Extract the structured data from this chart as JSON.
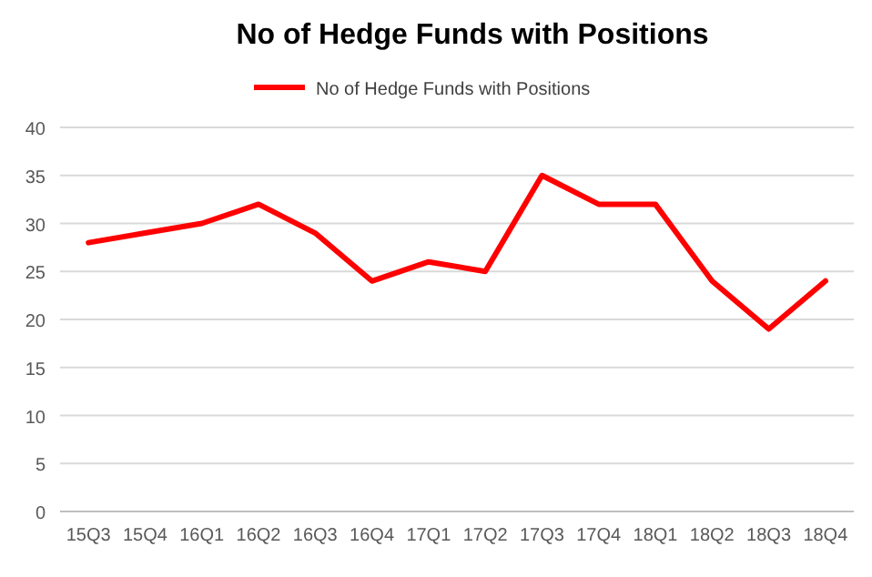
{
  "chart_data": {
    "type": "line",
    "title": "No of Hedge Funds with Positions",
    "categories": [
      "15Q3",
      "15Q4",
      "16Q1",
      "16Q2",
      "16Q3",
      "16Q4",
      "17Q1",
      "17Q2",
      "17Q3",
      "17Q4",
      "18Q1",
      "18Q2",
      "18Q3",
      "18Q4"
    ],
    "series": [
      {
        "name": "No of Hedge Funds with Positions",
        "color": "#ff0000",
        "values": [
          28,
          29,
          30,
          32,
          29,
          24,
          26,
          25,
          35,
          32,
          32,
          24,
          19,
          24
        ]
      }
    ],
    "ylim": [
      0,
      40
    ],
    "yticks": [
      0,
      5,
      10,
      15,
      20,
      25,
      30,
      35,
      40
    ],
    "grid": "y",
    "legend": "top",
    "marker": "none",
    "line_style": "solid"
  }
}
